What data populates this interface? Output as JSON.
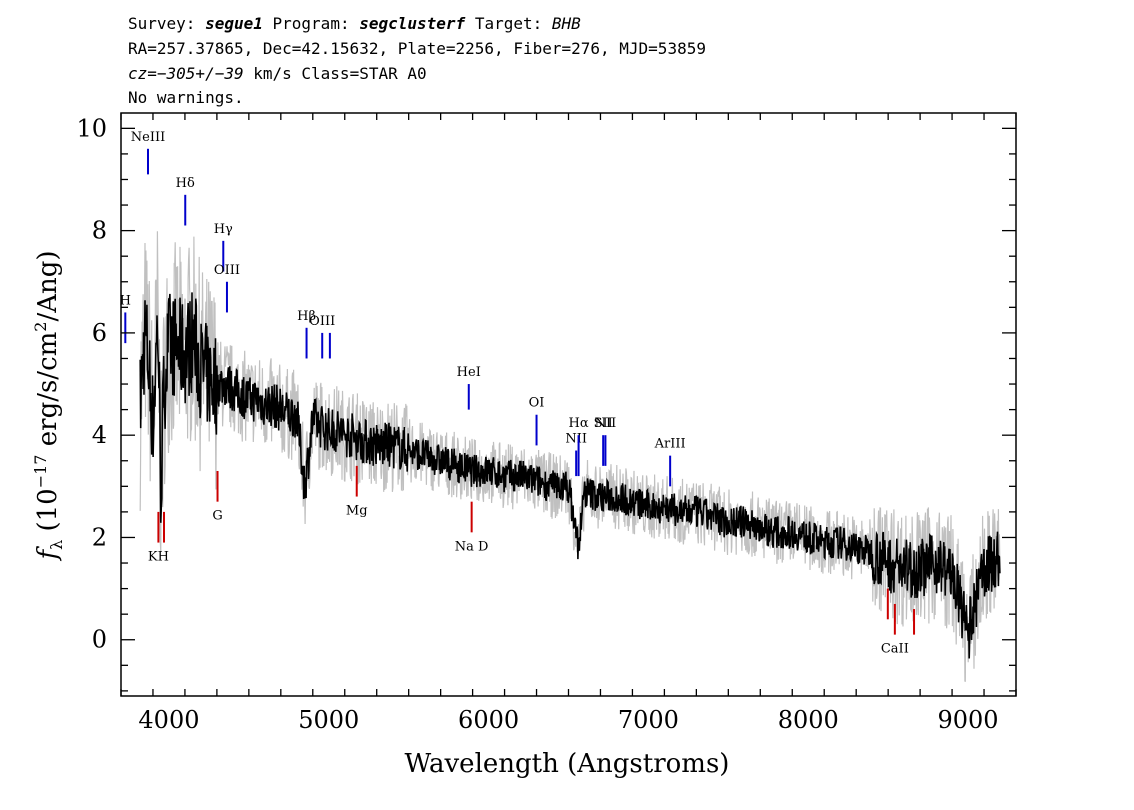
{
  "header": {
    "line1": {
      "survey_label": "Survey:",
      "survey": "segue1",
      "program_label": "Program:",
      "program": "segclusterf",
      "target_label": "Target:",
      "target": "BHB"
    },
    "line2": "RA=257.37865, Dec=42.15632, Plate=2256, Fiber=276, MJD=53859",
    "line3": {
      "cz": "cz=−305+/−39",
      "rest": "km/s Class=STAR A0"
    },
    "line4": "No warnings."
  },
  "colors": {
    "flux": "#000000",
    "error_band": "#c0c0c0",
    "emission": "#0000cc",
    "absorption": "#cc0000",
    "axis": "#000000"
  },
  "chart_data": {
    "type": "line",
    "xlabel": "Wavelength (Angstroms)",
    "ylabel": "f_λ (10^-17 erg/s/cm^2/Ang)",
    "xlim": [
      3700,
      9300
    ],
    "ylim": [
      -1.1,
      10.3
    ],
    "xticks": [
      4000,
      5000,
      6000,
      7000,
      8000,
      9000
    ],
    "yticks": [
      0,
      2,
      4,
      6,
      8,
      10
    ],
    "series": [
      {
        "x": [
          3820,
          3850,
          3870,
          3900,
          3930,
          3950,
          3970,
          4000,
          4050,
          4100,
          4150,
          4200,
          4250,
          4300,
          4350,
          4400,
          4450,
          4500,
          4550,
          4600,
          4650,
          4700,
          4750,
          4800,
          4850,
          4900,
          4950,
          5000,
          5050,
          5100,
          5150,
          5200,
          5300,
          5400,
          5500,
          5600,
          5700,
          5800,
          5900,
          6000,
          6100,
          6200,
          6300,
          6400,
          6500,
          6563,
          6600,
          6700,
          6800,
          6900,
          7000,
          7100,
          7200,
          7300,
          7400,
          7500,
          7600,
          7700,
          7800,
          7900,
          8000,
          8100,
          8200,
          8300,
          8400,
          8500,
          8600,
          8700,
          8800,
          8900,
          9000,
          9100,
          9200
        ],
        "y": [
          4.6,
          6.0,
          5.5,
          4.2,
          6.3,
          3.0,
          5.0,
          5.8,
          5.7,
          5.6,
          5.9,
          5.3,
          5.1,
          5.0,
          5.0,
          4.9,
          4.8,
          4.7,
          4.7,
          4.6,
          4.6,
          4.5,
          4.4,
          4.4,
          3.0,
          4.3,
          4.2,
          4.1,
          4.1,
          4.0,
          4.0,
          3.9,
          3.8,
          3.8,
          3.7,
          3.6,
          3.5,
          3.4,
          3.3,
          3.3,
          3.2,
          3.2,
          3.1,
          3.0,
          3.0,
          1.8,
          2.9,
          2.8,
          2.8,
          2.7,
          2.6,
          2.6,
          2.5,
          2.5,
          2.4,
          2.3,
          2.3,
          2.2,
          2.1,
          2.1,
          2.0,
          1.9,
          1.9,
          1.8,
          1.7,
          1.5,
          1.4,
          1.4,
          1.5,
          1.3,
          0.1,
          1.4,
          1.6
        ]
      }
    ],
    "lines": [
      {
        "label": "NeIII",
        "x": 3869,
        "kind": "emission",
        "y0": 9.1,
        "y1": 9.6
      },
      {
        "label": "Hδ",
        "x": 4102,
        "kind": "emission",
        "y0": 8.1,
        "y1": 8.7
      },
      {
        "label": "Hγ",
        "x": 4340,
        "kind": "emission",
        "y0": 7.2,
        "y1": 7.8
      },
      {
        "label": "OIII",
        "x": 4363,
        "kind": "emission",
        "y0": 6.4,
        "y1": 7.0
      },
      {
        "label": "H",
        "x": 3727,
        "kind": "emission",
        "y0": 5.8,
        "y1": 6.4
      },
      {
        "label": "Hβ",
        "x": 4861,
        "kind": "emission",
        "y0": 5.5,
        "y1": 6.1
      },
      {
        "label": "OIII",
        "x": 4959,
        "kind": "emission",
        "y0": 5.5,
        "y1": 6.0
      },
      {
        "label": "",
        "x": 5007,
        "kind": "emission",
        "y0": 5.5,
        "y1": 6.0
      },
      {
        "label": "HeI",
        "x": 5876,
        "kind": "emission",
        "y0": 4.5,
        "y1": 5.0
      },
      {
        "label": "OI",
        "x": 6300,
        "kind": "emission",
        "y0": 3.8,
        "y1": 4.4
      },
      {
        "label": "NII",
        "x": 6548,
        "kind": "emission",
        "y0": 3.2,
        "y1": 3.7
      },
      {
        "label": "Hα",
        "x": 6563,
        "kind": "emission",
        "y0": 3.2,
        "y1": 4.0
      },
      {
        "label": "SII",
        "x": 6717,
        "kind": "emission",
        "y0": 3.4,
        "y1": 4.0
      },
      {
        "label": "NII",
        "x": 6731,
        "kind": "emission",
        "y0": 3.4,
        "y1": 4.0
      },
      {
        "label": "ArIII",
        "x": 7136,
        "kind": "emission",
        "y0": 3.0,
        "y1": 3.6
      },
      {
        "label": "KH",
        "x": 3934,
        "kind": "absorption",
        "y0": 1.9,
        "y1": 2.5
      },
      {
        "label": "",
        "x": 3969,
        "kind": "absorption",
        "y0": 1.9,
        "y1": 2.5
      },
      {
        "label": "G",
        "x": 4304,
        "kind": "absorption",
        "y0": 2.7,
        "y1": 3.3
      },
      {
        "label": "Mg",
        "x": 5175,
        "kind": "absorption",
        "y0": 2.8,
        "y1": 3.4
      },
      {
        "label": "Na D",
        "x": 5894,
        "kind": "absorption",
        "y0": 2.1,
        "y1": 2.7
      },
      {
        "label": "CaII",
        "x": 8542,
        "kind": "absorption",
        "y0": 0.1,
        "y1": 0.7
      },
      {
        "label": "",
        "x": 8498,
        "kind": "absorption",
        "y0": 0.4,
        "y1": 1.0
      },
      {
        "label": "",
        "x": 8662,
        "kind": "absorption",
        "y0": 0.1,
        "y1": 0.6
      }
    ]
  }
}
